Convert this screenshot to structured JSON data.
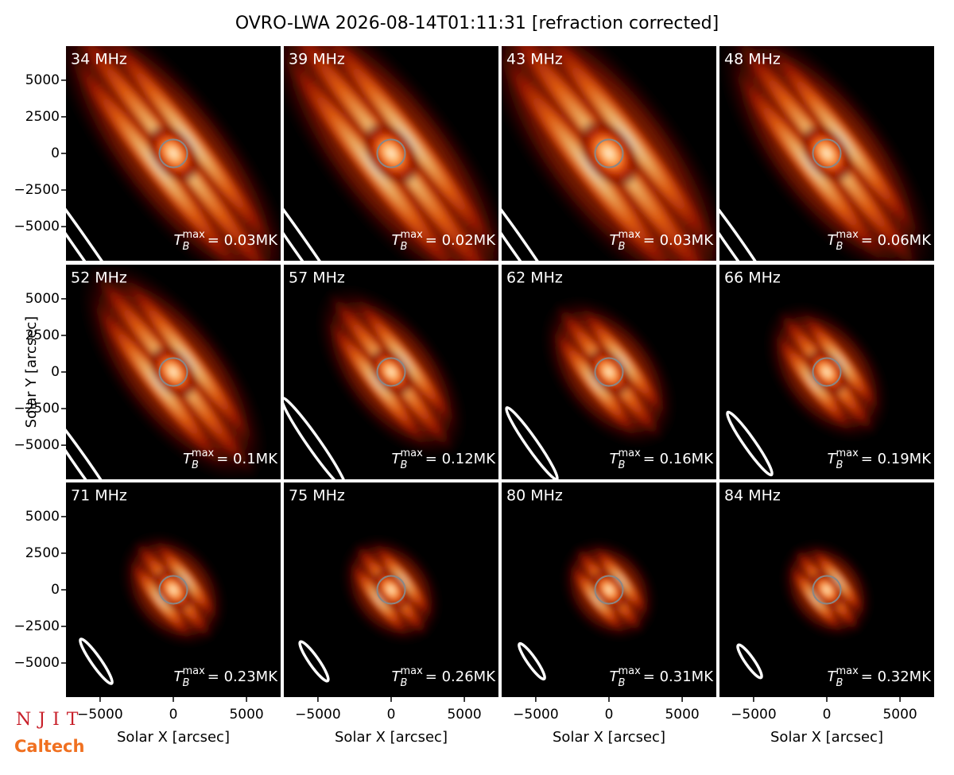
{
  "chart_data": {
    "type": "image-grid",
    "title": "OVRO-LWA 2026-08-14T01:11:31 [refraction corrected]",
    "xlabel": "Solar X [arcsec]",
    "ylabel": "Solar Y [arcsec]",
    "xlim": [
      -7330,
      7330
    ],
    "ylim": [
      -7330,
      7330
    ],
    "xticks": [
      {
        "value": -5000,
        "label": "−5000"
      },
      0,
      5000
    ],
    "yticks": [
      {
        "value": -5000,
        "label": "−5000"
      },
      {
        "value": -2500,
        "label": "−2500"
      },
      0,
      2500,
      5000
    ],
    "panels": [
      {
        "title": "34 MHz",
        "annotation": {
          "symbol": "T",
          "subscript": "B",
          "superscript": "max",
          "text": "= 0.03MK"
        }
      },
      {
        "title": "39 MHz",
        "annotation": {
          "symbol": "T",
          "subscript": "B",
          "superscript": "max",
          "text": "= 0.02MK"
        }
      },
      {
        "title": "43 MHz",
        "annotation": {
          "symbol": "T",
          "subscript": "B",
          "superscript": "max",
          "text": "= 0.03MK"
        }
      },
      {
        "title": "48 MHz",
        "annotation": {
          "symbol": "T",
          "subscript": "B",
          "superscript": "max",
          "text": "= 0.06MK"
        }
      },
      {
        "title": "52 MHz",
        "annotation": {
          "symbol": "T",
          "subscript": "B",
          "superscript": "max",
          "text": "= 0.1MK"
        }
      },
      {
        "title": "57 MHz",
        "annotation": {
          "symbol": "T",
          "subscript": "B",
          "superscript": "max",
          "text": "= 0.12MK"
        }
      },
      {
        "title": "62 MHz",
        "annotation": {
          "symbol": "T",
          "subscript": "B",
          "superscript": "max",
          "text": "= 0.16MK"
        }
      },
      {
        "title": "66 MHz",
        "annotation": {
          "symbol": "T",
          "subscript": "B",
          "superscript": "max",
          "text": "= 0.19MK"
        }
      },
      {
        "title": "71 MHz",
        "annotation": {
          "symbol": "T",
          "subscript": "B",
          "superscript": "max",
          "text": "= 0.23MK"
        }
      },
      {
        "title": "75 MHz",
        "annotation": {
          "symbol": "T",
          "subscript": "B",
          "superscript": "max",
          "text": "= 0.26MK"
        }
      },
      {
        "title": "80 MHz",
        "annotation": {
          "symbol": "T",
          "subscript": "B",
          "superscript": "max",
          "text": "= 0.31MK"
        }
      },
      {
        "title": "84 MHz",
        "annotation": {
          "symbol": "T",
          "subscript": "B",
          "superscript": "max",
          "text": "= 0.32MK"
        }
      }
    ],
    "logos": [
      "NJIT",
      "Caltech"
    ]
  }
}
